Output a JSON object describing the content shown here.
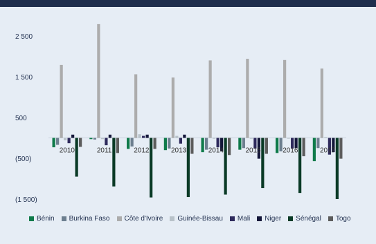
{
  "chart_data": {
    "type": "bar",
    "categories": [
      "2010",
      "2011",
      "2012",
      "2013",
      "2014",
      "2015",
      "2016",
      "2017"
    ],
    "ylim": [
      -1700,
      3000
    ],
    "yticks": [
      2500,
      1500,
      500,
      -500,
      -1500
    ],
    "ytick_labels": [
      "2 500",
      "1 500",
      "500",
      "(500)",
      "(1 500)"
    ],
    "grid": false,
    "legend_position": "bottom",
    "series": [
      {
        "name": "Bénin",
        "color": "#0f7a4a",
        "values": [
          -230,
          -30,
          -270,
          -300,
          -350,
          -290,
          -370,
          -570
        ]
      },
      {
        "name": "Burkina Faso",
        "color": "#6d7f8f",
        "values": [
          -170,
          -40,
          -210,
          -260,
          -290,
          -250,
          -330,
          -250
        ]
      },
      {
        "name": "Côte d'Ivoire",
        "color": "#acacac",
        "values": [
          1790,
          2790,
          1560,
          1480,
          1900,
          1940,
          1910,
          1700
        ]
      },
      {
        "name": "Guinée-Bissau",
        "color": "#b8c2c9",
        "values": [
          -60,
          -30,
          90,
          50,
          -20,
          -20,
          -20,
          20
        ]
      },
      {
        "name": "Mali",
        "color": "#2e2a5c",
        "values": [
          -130,
          -180,
          50,
          -140,
          -230,
          -260,
          -260,
          -410
        ]
      },
      {
        "name": "Niger",
        "color": "#14173a",
        "values": [
          80,
          80,
          80,
          80,
          -330,
          -510,
          -250,
          -350
        ]
      },
      {
        "name": "Sénégal",
        "color": "#0a3a26",
        "values": [
          -950,
          -1190,
          -1460,
          -1450,
          -1390,
          -1230,
          -1350,
          -1500
        ]
      },
      {
        "name": "Togo",
        "color": "#5c5c5c",
        "values": [
          -220,
          -370,
          -270,
          -390,
          -420,
          -390,
          -450,
          -510
        ]
      }
    ]
  }
}
